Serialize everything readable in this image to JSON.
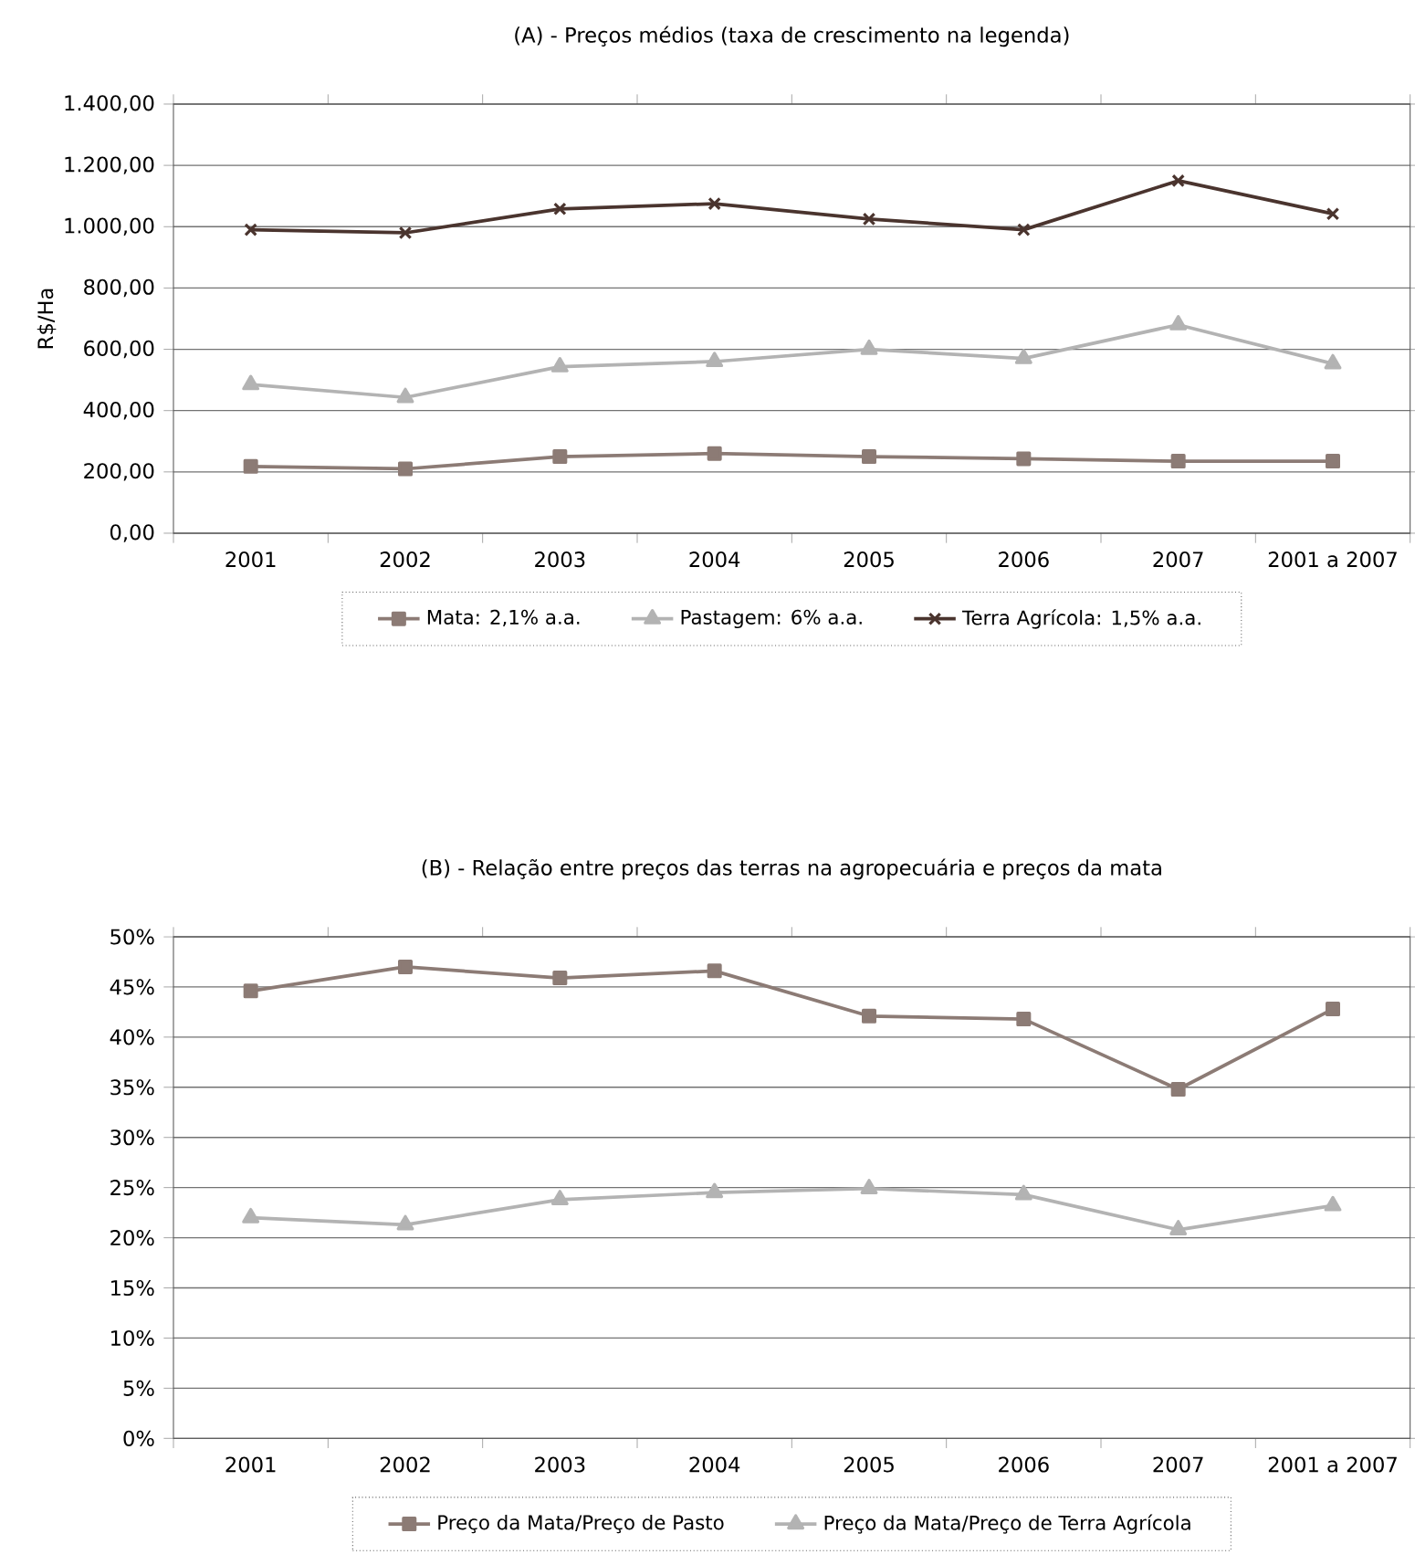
{
  "chart_data": [
    {
      "type": "line",
      "title": "(A) - Preços médios (taxa de crescimento na legenda)",
      "ylabel": "R$/Ha",
      "categories": [
        "2001",
        "2002",
        "2003",
        "2004",
        "2005",
        "2006",
        "2007",
        "2001 a 2007"
      ],
      "series": [
        {
          "name": "Mata: 2,1% a.a.",
          "color": "#8c7b75",
          "marker": "square",
          "values": [
            218,
            210,
            250,
            260,
            250,
            243,
            235,
            235
          ]
        },
        {
          "name": "Pastagem: 6% a.a.",
          "color": "#b3b3b3",
          "marker": "triangle",
          "values": [
            485,
            443,
            543,
            560,
            600,
            570,
            680,
            553
          ]
        },
        {
          "name": "Terra Agrícola: 1,5% a.a.",
          "color": "#4a342e",
          "marker": "cross",
          "values": [
            990,
            980,
            1058,
            1075,
            1025,
            990,
            1150,
            1042
          ]
        }
      ],
      "ylim": [
        0,
        1400
      ],
      "yticks": [
        {
          "value": 0,
          "label": "0,00"
        },
        {
          "value": 200,
          "label": "200,00"
        },
        {
          "value": 400,
          "label": "400,00"
        },
        {
          "value": 600,
          "label": "600,00"
        },
        {
          "value": 800,
          "label": "800,00"
        },
        {
          "value": 1000,
          "label": "1.000,00"
        },
        {
          "value": 1200,
          "label": "1.200,00"
        },
        {
          "value": 1400,
          "label": "1.400,00"
        }
      ],
      "grid": "y",
      "legend": "bottom",
      "line_style": "solid"
    },
    {
      "type": "line",
      "title": "(B) - Relação entre preços das terras na agropecuária e preços da mata",
      "categories": [
        "2001",
        "2002",
        "2003",
        "2004",
        "2005",
        "2006",
        "2007",
        "2001 a 2007"
      ],
      "series": [
        {
          "name": "Preço da Mata/Preço de Pasto",
          "color": "#8c7b75",
          "marker": "square",
          "values": [
            44.6,
            47.0,
            45.9,
            46.6,
            42.1,
            41.8,
            34.8,
            42.8
          ]
        },
        {
          "name": "Preço da Mata/Preço de Terra Agrícola",
          "color": "#b3b3b3",
          "marker": "triangle",
          "values": [
            22.0,
            21.3,
            23.8,
            24.5,
            24.9,
            24.3,
            20.8,
            23.2
          ]
        }
      ],
      "ylim": [
        0,
        50
      ],
      "yticks": [
        {
          "value": 0,
          "label": "0%"
        },
        {
          "value": 5,
          "label": "5%"
        },
        {
          "value": 10,
          "label": "10%"
        },
        {
          "value": 15,
          "label": "15%"
        },
        {
          "value": 20,
          "label": "20%"
        },
        {
          "value": 25,
          "label": "25%"
        },
        {
          "value": 30,
          "label": "30%"
        },
        {
          "value": 35,
          "label": "35%"
        },
        {
          "value": 40,
          "label": "40%"
        },
        {
          "value": 45,
          "label": "45%"
        },
        {
          "value": 50,
          "label": "50%"
        }
      ],
      "grid": "y",
      "legend": "bottom",
      "line_style": "solid"
    }
  ]
}
